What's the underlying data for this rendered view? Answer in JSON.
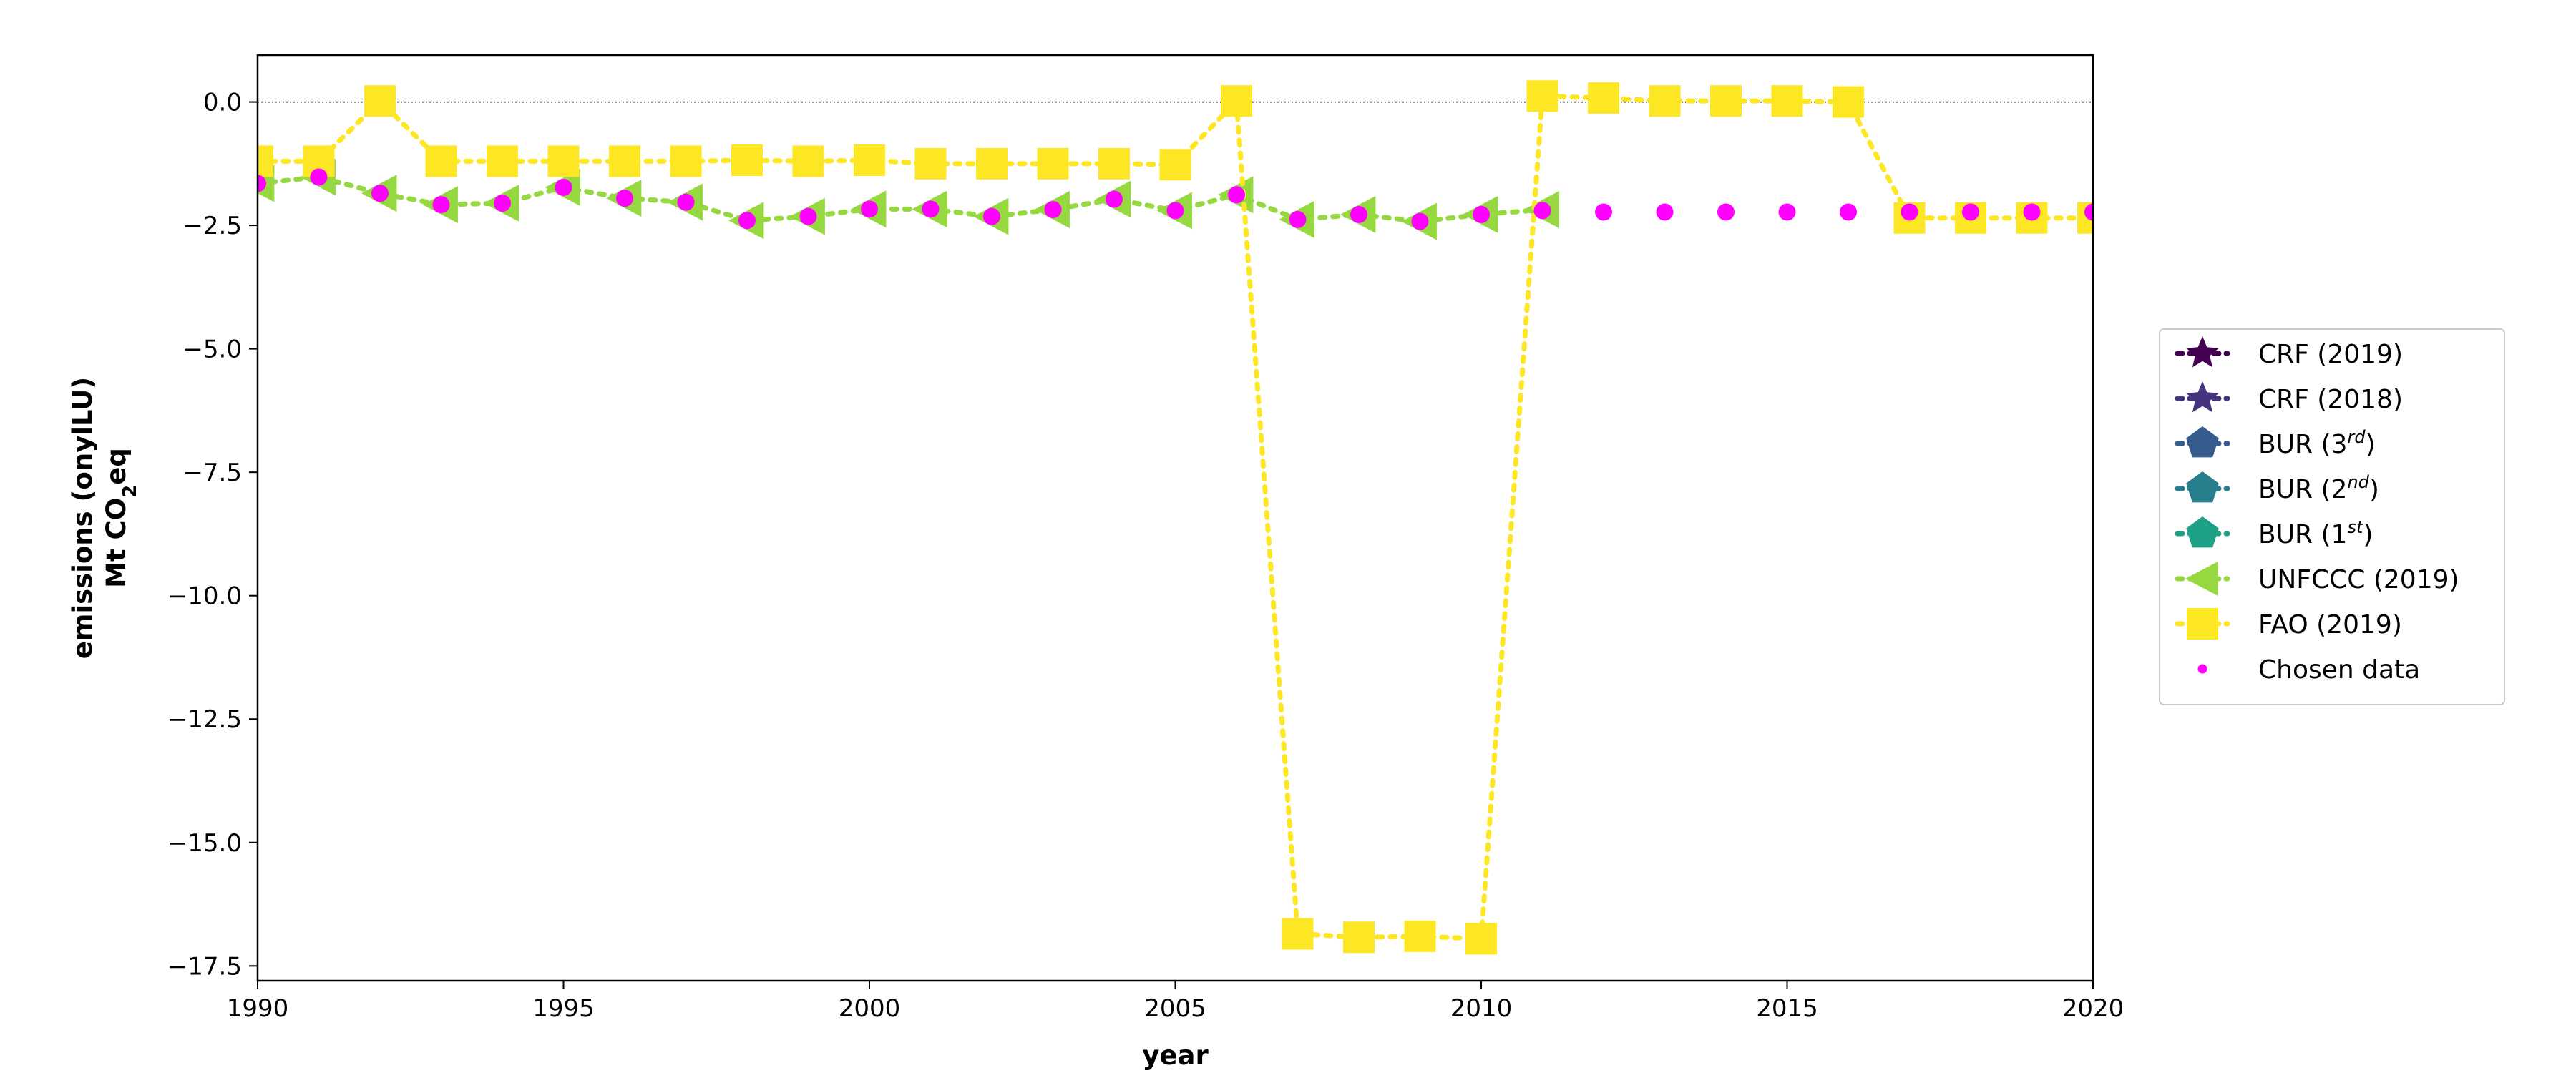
{
  "chart_data": {
    "type": "line",
    "xlabel": "year",
    "ylabel_line1": "emissions (onylLU)",
    "ylabel_line2_parts": [
      "Mt CO",
      "2",
      "eq"
    ],
    "xlim": [
      1990,
      2020
    ],
    "ylim": [
      -17.8,
      0.95
    ],
    "x_ticks": [
      1990,
      1995,
      2000,
      2005,
      2010,
      2015,
      2020
    ],
    "y_ticks": [
      0.0,
      -2.5,
      -5.0,
      -7.5,
      -10.0,
      -12.5,
      -15.0,
      -17.5
    ],
    "x_tick_labels": [
      "1990",
      "1995",
      "2000",
      "2005",
      "2010",
      "2015",
      "2020"
    ],
    "y_tick_labels": [
      "0.0",
      "−2.5",
      "−5.0",
      "−7.5",
      "−10.0",
      "−12.5",
      "−15.0",
      "−17.5"
    ],
    "zero_line": true,
    "legend_placement": "right, outside the plot",
    "series": [
      {
        "name": "UNFCCC (2019)",
        "color": "#95d840",
        "marker": "triangle-left",
        "linestyle": "dotted",
        "x": [
          1990,
          1991,
          1992,
          1993,
          1994,
          1995,
          1996,
          1997,
          1998,
          1999,
          2000,
          2001,
          2002,
          2003,
          2004,
          2005,
          2006,
          2007,
          2008,
          2009,
          2010,
          2011
        ],
        "values": [
          -1.65,
          -1.52,
          -1.85,
          -2.08,
          -2.05,
          -1.73,
          -1.95,
          -2.03,
          -2.4,
          -2.32,
          -2.17,
          -2.17,
          -2.32,
          -2.18,
          -1.97,
          -2.2,
          -1.88,
          -2.38,
          -2.28,
          -2.42,
          -2.28,
          -2.18
        ]
      },
      {
        "name": "FAO (2019)",
        "color": "#fde725",
        "marker": "square",
        "linestyle": "dotted",
        "x": [
          1990,
          1991,
          1992,
          1993,
          1994,
          1995,
          1996,
          1997,
          1998,
          1999,
          2000,
          2001,
          2002,
          2003,
          2004,
          2005,
          2006,
          2007,
          2008,
          2009,
          2010,
          2011,
          2012,
          2013,
          2014,
          2015,
          2016,
          2017,
          2018,
          2019,
          2020
        ],
        "values": [
          -1.2,
          -1.2,
          0.02,
          -1.2,
          -1.2,
          -1.2,
          -1.2,
          -1.2,
          -1.18,
          -1.2,
          -1.18,
          -1.25,
          -1.25,
          -1.25,
          -1.25,
          -1.27,
          0.02,
          -16.85,
          -16.92,
          -16.9,
          -16.95,
          0.12,
          0.08,
          0.02,
          0.02,
          0.02,
          0.0,
          -2.35,
          -2.35,
          -2.35,
          -2.35
        ]
      },
      {
        "name": "Chosen data",
        "color": "#ff00ff",
        "marker": "circle",
        "linestyle": "none",
        "x": [
          1990,
          1991,
          1992,
          1993,
          1994,
          1995,
          1996,
          1997,
          1998,
          1999,
          2000,
          2001,
          2002,
          2003,
          2004,
          2005,
          2006,
          2007,
          2008,
          2009,
          2010,
          2011,
          2012,
          2013,
          2014,
          2015,
          2016,
          2017,
          2018,
          2019,
          2020
        ],
        "values": [
          -1.65,
          -1.52,
          -1.85,
          -2.08,
          -2.05,
          -1.73,
          -1.95,
          -2.03,
          -2.4,
          -2.32,
          -2.17,
          -2.17,
          -2.32,
          -2.18,
          -1.97,
          -2.2,
          -1.88,
          -2.38,
          -2.28,
          -2.42,
          -2.28,
          -2.2,
          -2.23,
          -2.23,
          -2.23,
          -2.23,
          -2.23,
          -2.23,
          -2.23,
          -2.23,
          -2.23
        ]
      }
    ],
    "legend_entries": [
      {
        "name": "CRF (2019)",
        "color": "#440154",
        "marker": "star",
        "linestyle": "dotted"
      },
      {
        "name": "CRF (2018)",
        "color": "#46337e",
        "marker": "star",
        "linestyle": "dotted"
      },
      {
        "name": "BUR (3rd)",
        "base": "BUR (3",
        "sup": "rd",
        "tail": ")",
        "color": "#365c8d",
        "marker": "pentagon",
        "linestyle": "dotted"
      },
      {
        "name": "BUR (2nd)",
        "base": "BUR (2",
        "sup": "nd",
        "tail": ")",
        "color": "#277f8e",
        "marker": "pentagon",
        "linestyle": "dotted"
      },
      {
        "name": "BUR (1st)",
        "base": "BUR (1",
        "sup": "st",
        "tail": ")",
        "color": "#1fa187",
        "marker": "pentagon",
        "linestyle": "dotted"
      },
      {
        "name": "UNFCCC (2019)",
        "color": "#95d840",
        "marker": "triangle-left",
        "linestyle": "dotted"
      },
      {
        "name": "FAO (2019)",
        "color": "#fde725",
        "marker": "square",
        "linestyle": "dotted"
      },
      {
        "name": "Chosen data",
        "color": "#ff00ff",
        "marker": "circle",
        "linestyle": "none"
      }
    ]
  }
}
